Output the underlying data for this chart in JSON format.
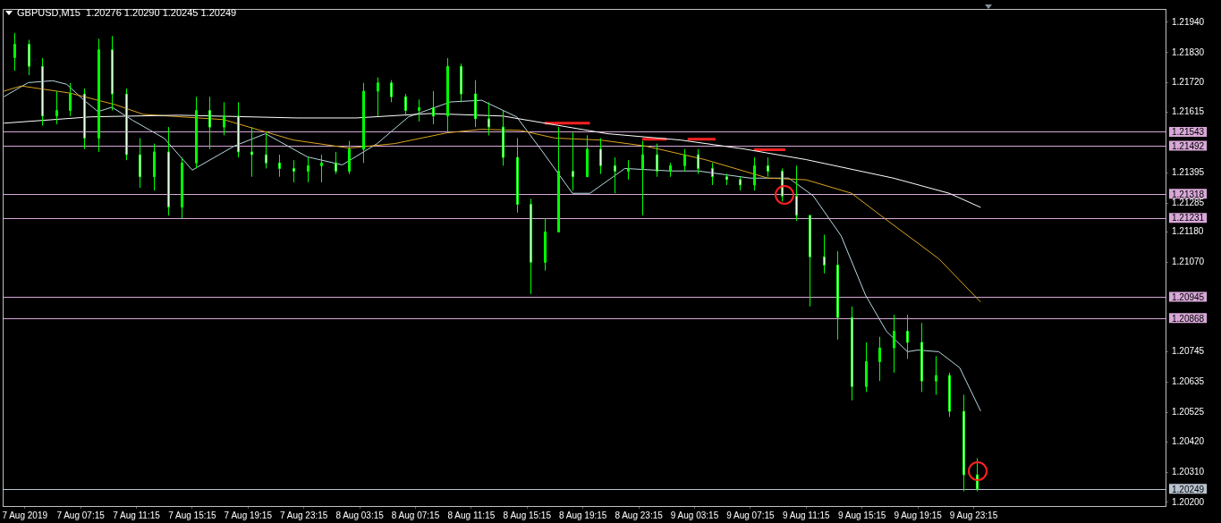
{
  "chart_data": {
    "type": "candlestick",
    "title": "GBPUSD,M15  1.20276 1.20290 1.20245 1.20249",
    "xlim": [
      "2019-08-07T01:40",
      "2019-08-10T13:00"
    ],
    "xticks": [
      {
        "value": "2019-08-07T03:15",
        "label": "7 Aug 2019"
      },
      {
        "value": "2019-08-07T07:15",
        "label": "7 Aug 07:15"
      },
      {
        "value": "2019-08-07T11:15",
        "label": "7 Aug 11:15"
      },
      {
        "value": "2019-08-07T15:15",
        "label": "7 Aug 15:15"
      },
      {
        "value": "2019-08-07T19:15",
        "label": "7 Aug 19:15"
      },
      {
        "value": "2019-08-07T23:15",
        "label": "7 Aug 23:15"
      },
      {
        "value": "2019-08-08T03:15",
        "label": "8 Aug 03:15"
      },
      {
        "value": "2019-08-08T07:15",
        "label": "8 Aug 07:15"
      },
      {
        "value": "2019-08-08T11:15",
        "label": "8 Aug 11:15"
      },
      {
        "value": "2019-08-08T15:15",
        "label": "8 Aug 15:15"
      },
      {
        "value": "2019-08-08T19:15",
        "label": "8 Aug 19:15"
      },
      {
        "value": "2019-08-08T23:15",
        "label": "8 Aug 23:15"
      },
      {
        "value": "2019-08-09T03:15",
        "label": "9 Aug 03:15"
      },
      {
        "value": "2019-08-09T07:15",
        "label": "9 Aug 07:15"
      },
      {
        "value": "2019-08-09T11:15",
        "label": "9 Aug 11:15"
      },
      {
        "value": "2019-08-09T15:15",
        "label": "9 Aug 15:15"
      },
      {
        "value": "2019-08-09T19:15",
        "label": "9 Aug 19:15"
      },
      {
        "value": "2019-08-09T23:15",
        "label": "9 Aug 23:15"
      }
    ],
    "ylim": [
      1.20187,
      1.21988
    ],
    "yticks": [
      {
        "value": 1.2194,
        "label": "1.21940"
      },
      {
        "value": 1.2183,
        "label": "1.21830"
      },
      {
        "value": 1.2172,
        "label": "1.21720"
      },
      1.21615,
      1.21395,
      1.21285,
      {
        "value": 1.2118,
        "label": "1.21180"
      },
      {
        "value": 1.2107,
        "label": "1.21070"
      },
      1.20745,
      1.20635,
      1.20525,
      {
        "value": 1.2042,
        "label": "1.20420"
      },
      {
        "value": 1.2031,
        "label": "1.20310"
      },
      {
        "value": 1.202,
        "label": "1.20200"
      }
    ],
    "grid": false,
    "legend": false,
    "series": [
      {
        "type": "candlestick",
        "color": "#00ff00",
        "colors": [
          "#00ff00",
          "#ffffff",
          "#ffffff",
          "#00ff00",
          "#00ff00",
          "#ffffff",
          "#00ff00",
          "#ffffff",
          "#ffffff",
          "#ffffff",
          "#00ff00",
          "#ffffff",
          "#00ff00",
          "#00ff00",
          "#ffffff",
          "#00ff00",
          "#ffffff",
          "#ffffff",
          "#ffffff",
          "#ffffff",
          "#ffffff",
          "#00ff00",
          "#00ff00",
          "#ffffff",
          "#00ff00",
          "#00ff00",
          "#00ff00",
          "#ffffff",
          "#ffffff",
          "#00ff00",
          "#ffffff",
          "#00ff00",
          "#ffffff",
          "#ffffff",
          "#ffffff",
          "#ffffff",
          "#ffffff",
          "#ffffff",
          "#00ff00",
          "#00ff00",
          "#ffffff",
          "#00ff00",
          "#ffffff",
          "#ffffff",
          "#00ff00",
          "#00ff00",
          "#ffffff",
          "#00ff00",
          "#00ff00",
          "#ffffff",
          "#ffffff",
          "#ffffff",
          "#ffffff",
          "#00ff00",
          "#ffffff",
          "#ffffff",
          "#ffffff",
          "#ffffff",
          "#ffffff",
          "#ffffff",
          "#ffffff",
          "#00ff00",
          "#00ff00",
          "#00ff00",
          "#ffffff",
          "#ffffff",
          "#00ff00",
          "#ffffff",
          "#ffffff",
          "#ffffff"
        ],
        "x": [
          "2019-08-07T02:30",
          "2019-08-07T03:30",
          "2019-08-07T04:30",
          "2019-08-07T05:30",
          "2019-08-07T06:30",
          "2019-08-07T07:30",
          "2019-08-07T08:30",
          "2019-08-07T09:30",
          "2019-08-07T10:30",
          "2019-08-07T11:30",
          "2019-08-07T12:30",
          "2019-08-07T13:30",
          "2019-08-07T14:30",
          "2019-08-07T15:30",
          "2019-08-07T16:30",
          "2019-08-07T17:30",
          "2019-08-07T18:30",
          "2019-08-07T19:30",
          "2019-08-07T20:30",
          "2019-08-07T21:30",
          "2019-08-07T22:30",
          "2019-08-07T23:30",
          "2019-08-08T00:30",
          "2019-08-08T01:30",
          "2019-08-08T02:30",
          "2019-08-08T03:30",
          "2019-08-08T04:30",
          "2019-08-08T05:30",
          "2019-08-08T06:30",
          "2019-08-08T07:30",
          "2019-08-08T08:30",
          "2019-08-08T09:30",
          "2019-08-08T10:30",
          "2019-08-08T11:30",
          "2019-08-08T12:30",
          "2019-08-08T13:30",
          "2019-08-08T14:30",
          "2019-08-08T15:30",
          "2019-08-08T16:30",
          "2019-08-08T17:30",
          "2019-08-08T18:30",
          "2019-08-08T19:30",
          "2019-08-08T20:30",
          "2019-08-08T21:30",
          "2019-08-08T22:30",
          "2019-08-08T23:30",
          "2019-08-09T00:30",
          "2019-08-09T01:30",
          "2019-08-09T02:30",
          "2019-08-09T03:30",
          "2019-08-09T04:30",
          "2019-08-09T05:30",
          "2019-08-09T06:30",
          "2019-08-09T07:30",
          "2019-08-09T08:30",
          "2019-08-09T09:30",
          "2019-08-09T10:30",
          "2019-08-09T11:30",
          "2019-08-09T12:30",
          "2019-08-09T13:30",
          "2019-08-09T14:30",
          "2019-08-09T15:30",
          "2019-08-09T16:30",
          "2019-08-09T17:30",
          "2019-08-09T18:30",
          "2019-08-09T19:30",
          "2019-08-09T20:30",
          "2019-08-09T21:30",
          "2019-08-09T22:30",
          "2019-08-09T23:30"
        ],
        "ohlc": [
          [
            1.21812,
            1.21901,
            1.21764,
            1.2186
          ],
          [
            1.2186,
            1.21876,
            1.21748,
            1.2178
          ],
          [
            1.2178,
            1.2181,
            1.21565,
            1.216
          ],
          [
            1.216,
            1.2169,
            1.2157,
            1.2162
          ],
          [
            1.2162,
            1.2172,
            1.216,
            1.2168
          ],
          [
            1.2168,
            1.217,
            1.2148,
            1.2152
          ],
          [
            1.2152,
            1.2188,
            1.2147,
            1.2184
          ],
          [
            1.2184,
            1.2189,
            1.2162,
            1.2168
          ],
          [
            1.2168,
            1.217,
            1.2144,
            1.2146
          ],
          [
            1.2146,
            1.2152,
            1.2134,
            1.2138
          ],
          [
            1.2138,
            1.215,
            1.2133,
            1.2147
          ],
          [
            1.2147,
            1.2156,
            1.2124,
            1.2127
          ],
          [
            1.2127,
            1.2145,
            1.2123,
            1.2143
          ],
          [
            1.2143,
            1.2167,
            1.2141,
            1.2162
          ],
          [
            1.2162,
            1.2167,
            1.2148,
            1.2156
          ],
          [
            1.2156,
            1.2165,
            1.2153,
            1.216
          ],
          [
            1.216,
            1.2165,
            1.2145,
            1.2147
          ],
          [
            1.2147,
            1.2156,
            1.2138,
            1.2146
          ],
          [
            1.2146,
            1.2154,
            1.2141,
            1.2143
          ],
          [
            1.2143,
            1.2146,
            1.2138,
            1.2141
          ],
          [
            1.2141,
            1.2144,
            1.2136,
            1.214
          ],
          [
            1.214,
            1.2145,
            1.2136,
            1.2142
          ],
          [
            1.2142,
            1.2146,
            1.2136,
            1.2143
          ],
          [
            1.2143,
            1.2147,
            1.2139,
            1.214
          ],
          [
            1.214,
            1.2151,
            1.2139,
            1.2148
          ],
          [
            1.2148,
            1.2172,
            1.2143,
            1.2169
          ],
          [
            1.2169,
            1.2174,
            1.216,
            1.2172
          ],
          [
            1.2172,
            1.2173,
            1.2165,
            1.2167
          ],
          [
            1.2167,
            1.2168,
            1.216,
            1.2162
          ],
          [
            1.2162,
            1.2166,
            1.2158,
            1.2163
          ],
          [
            1.2163,
            1.2169,
            1.2157,
            1.216
          ],
          [
            1.216,
            1.2181,
            1.2154,
            1.2178
          ],
          [
            1.2178,
            1.2179,
            1.2165,
            1.2168
          ],
          [
            1.2168,
            1.2173,
            1.2156,
            1.2159
          ],
          [
            1.2159,
            1.2165,
            1.2153,
            1.2156
          ],
          [
            1.2156,
            1.2162,
            1.2142,
            1.2145
          ],
          [
            1.2145,
            1.2152,
            1.2125,
            1.2128
          ],
          [
            1.2128,
            1.213,
            1.20955,
            1.2107
          ],
          [
            1.2107,
            1.2123,
            1.2104,
            1.2118
          ],
          [
            1.2118,
            1.2156,
            1.2118,
            1.214
          ],
          [
            1.214,
            1.2154,
            1.2133,
            1.2138
          ],
          [
            1.2138,
            1.2153,
            1.2138,
            1.2148
          ],
          [
            1.2148,
            1.2152,
            1.2139,
            1.2142
          ],
          [
            1.2142,
            1.2145,
            1.2132,
            1.214
          ],
          [
            1.214,
            1.2144,
            1.2137,
            1.2141
          ],
          [
            1.2141,
            1.2151,
            1.2124,
            1.2146
          ],
          [
            1.2146,
            1.215,
            1.2138,
            1.214
          ],
          [
            1.214,
            1.2143,
            1.2138,
            1.2142
          ],
          [
            1.2142,
            1.2148,
            1.214,
            1.2146
          ],
          [
            1.2146,
            1.2148,
            1.2139,
            1.2141
          ],
          [
            1.2141,
            1.2143,
            1.2135,
            1.2138
          ],
          [
            1.2138,
            1.2139,
            1.2135,
            1.2137
          ],
          [
            1.2137,
            1.2138,
            1.2133,
            1.2135
          ],
          [
            1.2135,
            1.2145,
            1.2133,
            1.2142
          ],
          [
            1.2142,
            1.2145,
            1.2138,
            1.214
          ],
          [
            1.214,
            1.2141,
            1.2129,
            1.2131
          ],
          [
            1.2131,
            1.2142,
            1.2122,
            1.2124
          ],
          [
            1.2124,
            1.2124,
            1.2091,
            1.2109
          ],
          [
            1.2109,
            1.2117,
            1.2103,
            1.2106
          ],
          [
            1.2106,
            1.2111,
            1.2079,
            1.2087
          ],
          [
            1.2087,
            1.2091,
            1.2057,
            1.2062
          ],
          [
            1.2062,
            1.2078,
            1.206,
            1.2071
          ],
          [
            1.2071,
            1.208,
            1.2064,
            1.2076
          ],
          [
            1.2076,
            1.2088,
            1.2067,
            1.2082
          ],
          [
            1.2082,
            1.2088,
            1.2072,
            1.2078
          ],
          [
            1.2078,
            1.2085,
            1.206,
            1.2064
          ],
          [
            1.2064,
            1.2073,
            1.2059,
            1.2066
          ],
          [
            1.2066,
            1.2067,
            1.2051,
            1.2053
          ],
          [
            1.2053,
            1.2059,
            1.2024,
            1.203
          ],
          [
            1.203,
            1.2036,
            1.2024,
            1.20249
          ]
        ]
      },
      {
        "type": "line",
        "color": "#ffffff",
        "x": [
          "2019-08-07T01:45",
          "2019-08-07T08:00",
          "2019-08-07T14:15",
          "2019-08-07T22:45",
          "2019-08-08T03:00",
          "2019-08-08T08:15",
          "2019-08-08T13:30",
          "2019-08-08T17:15",
          "2019-08-08T21:00",
          "2019-08-09T02:15",
          "2019-08-09T06:45",
          "2019-08-09T11:15",
          "2019-08-09T17:30",
          "2019-08-09T21:30",
          "2019-08-09T23:45"
        ],
        "values": [
          1.21574,
          1.21597,
          1.21603,
          1.21593,
          1.21593,
          1.21609,
          1.216,
          1.21568,
          1.21536,
          1.21513,
          1.21481,
          1.21442,
          1.21375,
          1.2132,
          1.21269
        ]
      },
      {
        "type": "line",
        "color": "#daa520",
        "x": [
          "2019-08-07T01:45",
          "2019-08-07T03:00",
          "2019-08-07T06:30",
          "2019-08-07T09:45",
          "2019-08-07T11:45",
          "2019-08-07T17:30",
          "2019-08-07T22:30",
          "2019-08-08T02:30",
          "2019-08-08T05:45",
          "2019-08-08T09:30",
          "2019-08-08T12:00",
          "2019-08-08T14:45",
          "2019-08-08T17:15",
          "2019-08-08T20:30",
          "2019-08-08T23:45",
          "2019-08-09T04:00",
          "2019-08-09T08:30",
          "2019-08-09T11:15",
          "2019-08-09T14:30",
          "2019-08-09T17:00",
          "2019-08-09T20:45",
          "2019-08-09T23:45"
        ],
        "values": [
          1.2169,
          1.21709,
          1.21683,
          1.21641,
          1.21606,
          1.21587,
          1.21513,
          1.21484,
          1.215,
          1.21539,
          1.21552,
          1.21548,
          1.2152,
          1.21513,
          1.21491,
          1.21442,
          1.21375,
          1.21369,
          1.2132,
          1.21224,
          1.21083,
          1.20926
        ]
      },
      {
        "type": "line",
        "color": "#b8d8e0",
        "x": [
          "2019-08-07T01:45",
          "2019-08-07T03:30",
          "2019-08-07T05:15",
          "2019-08-07T06:15",
          "2019-08-07T07:30",
          "2019-08-07T08:30",
          "2019-08-07T09:30",
          "2019-08-07T11:00",
          "2019-08-07T13:15",
          "2019-08-07T15:15",
          "2019-08-07T18:15",
          "2019-08-07T20:30",
          "2019-08-07T23:30",
          "2019-08-08T02:00",
          "2019-08-08T04:30",
          "2019-08-08T06:45",
          "2019-08-08T09:45",
          "2019-08-08T12:00",
          "2019-08-08T14:30",
          "2019-08-08T16:15",
          "2019-08-08T18:30",
          "2019-08-08T19:45",
          "2019-08-08T22:15",
          "2019-08-09T01:30",
          "2019-08-09T03:30",
          "2019-08-09T07:15",
          "2019-08-09T10:00",
          "2019-08-09T11:45",
          "2019-08-09T13:45",
          "2019-08-09T15:30",
          "2019-08-09T17:00",
          "2019-08-09T18:30",
          "2019-08-09T19:15",
          "2019-08-09T20:45",
          "2019-08-09T22:15",
          "2019-08-09T23:45"
        ],
        "values": [
          1.2167,
          1.21721,
          1.21728,
          1.21715,
          1.21657,
          1.21616,
          1.21632,
          1.21584,
          1.21519,
          1.21404,
          1.21491,
          1.21536,
          1.21452,
          1.21423,
          1.215,
          1.21597,
          1.21651,
          1.21657,
          1.21597,
          1.21478,
          1.2132,
          1.2132,
          1.2141,
          1.21401,
          1.21401,
          1.21375,
          1.21375,
          1.21311,
          1.21166,
          1.20951,
          1.2082,
          1.20746,
          1.20752,
          1.20746,
          1.20688,
          1.20531
        ]
      },
      {
        "type": "line",
        "color": "#ff2020",
        "x": [
          "2019-08-08T16:30",
          "2019-08-08T19:45"
        ],
        "values": [
          1.21574,
          1.21574
        ]
      },
      {
        "type": "line",
        "color": "#ff2020",
        "x": [
          "2019-08-08T23:30",
          "2019-08-09T01:15"
        ],
        "values": [
          1.21516,
          1.21516
        ]
      },
      {
        "type": "line",
        "color": "#ff2020",
        "x": [
          "2019-08-09T02:45",
          "2019-08-09T04:45"
        ],
        "values": [
          1.21516,
          1.21516
        ]
      },
      {
        "type": "line",
        "color": "#ff2020",
        "x": [
          "2019-08-09T07:30",
          "2019-08-09T09:45"
        ],
        "values": [
          1.21478,
          1.21478
        ]
      }
    ],
    "ref_lines": [
      {
        "axis": "y",
        "value": 1.21543,
        "label": "1.21543",
        "color": "#d8a8d8"
      },
      {
        "axis": "y",
        "value": 1.21492,
        "label": "1.21492",
        "color": "#d8a8d8"
      },
      {
        "axis": "y",
        "value": 1.21318,
        "label": "1.21318",
        "color": "#d8a8d8"
      },
      {
        "axis": "y",
        "value": 1.21231,
        "label": "1.21231",
        "color": "#d8a8d8"
      },
      {
        "axis": "y",
        "value": 1.20945,
        "label": "1.20945",
        "color": "#d8a8d8"
      },
      {
        "axis": "y",
        "value": 1.20868,
        "label": "1.20868",
        "color": "#d8a8d8"
      },
      {
        "axis": "y",
        "value": 1.20249,
        "label": "1.20249",
        "color": "#b8c4d0"
      }
    ]
  }
}
